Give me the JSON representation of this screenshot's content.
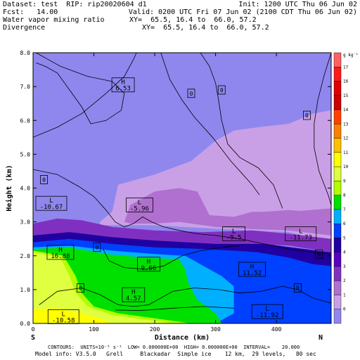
{
  "header": {
    "dataset": "Dataset: test  RIP: rip20020604 d1",
    "init": "Init: 1200 UTC Thu 06 Jun 02",
    "fcst": "Fcst:   14.00",
    "valid": "Valid: 0200 UTC Fri 07 Jun 02 (2100 CDT Thu 06 Jun 02)",
    "field1": "Water vapor mixing ratio",
    "field1_xy": "XY=  65.5, 16.4 to  66.0, 57.2",
    "field2": "Divergence",
    "field2_xy": "XY=  65.5, 16.4 to  66.0, 57.2"
  },
  "footer": {
    "contours": "CONTOURS:  UNITS=10⁻⁵ s⁻¹  LOW= 0.000000E+00  HIGH= 0.000000E+00  INTERVAL=    20.000",
    "model_info": "Model info: V3.5.0   Grell     Blackadar  Simple ice    12 km,  29 levels,   80 sec"
  },
  "chart_data": {
    "type": "heatmap",
    "title": "Water vapor mixing ratio",
    "xlabel": "Distance (km)",
    "ylabel": "Height (km)",
    "xlim": [
      0,
      490
    ],
    "ylim": [
      0,
      8
    ],
    "x_ticks": [
      0,
      100,
      200,
      300,
      400
    ],
    "x_tick_labels": [
      "0",
      "100",
      "200",
      "300",
      "400"
    ],
    "y_ticks": [
      0,
      1,
      2,
      3,
      4,
      5,
      6,
      7,
      8
    ],
    "y_tick_labels": [
      "0.0",
      "1.0",
      "2.0",
      "3.0",
      "4.0",
      "5.0",
      "6.0",
      "7.0",
      "8.0"
    ],
    "x_end_labels": [
      "S",
      "N"
    ],
    "colorbar": {
      "unit_label": "g kg⁻¹",
      "levels": [
        18,
        17,
        16,
        15,
        14,
        13,
        12,
        11,
        10,
        9,
        8,
        7,
        6,
        5,
        4,
        3,
        2,
        1,
        0
      ],
      "colors": [
        "#ff6060",
        "#ff1a1a",
        "#e00000",
        "#cc0000",
        "#ff4000",
        "#ff8000",
        "#ffc000",
        "#ffff00",
        "#e0ff40",
        "#b0ff00",
        "#00e000",
        "#00b0ff",
        "#0040ff",
        "#2000a0",
        "#5a00c0",
        "#8030c0",
        "#b070d0",
        "#c9a0e6",
        "#8f87ee"
      ]
    },
    "moisture_regions": [
      {
        "level": 0,
        "color": "#8f87ee"
      },
      {
        "level": 1,
        "color": "#c9a0e6"
      },
      {
        "level": 2,
        "color": "#b070d0"
      },
      {
        "level": 3,
        "color": "#8030c0"
      },
      {
        "level": 5,
        "color": "#2000a0"
      },
      {
        "level": 6,
        "color": "#0040ff"
      },
      {
        "level": 7,
        "color": "#00b0ff"
      },
      {
        "level": 8,
        "color": "#00e000"
      },
      {
        "level": 9,
        "color": "#b0ff00"
      },
      {
        "level": 10,
        "color": "#e0ff40"
      },
      {
        "level": 11,
        "color": "#ffff00"
      }
    ],
    "extrema_labels": [
      {
        "kind": "H",
        "value": "6.53",
        "x": 148,
        "y": 7.05
      },
      {
        "kind": "L",
        "value": "-10.67",
        "x": 30,
        "y": 3.55
      },
      {
        "kind": "L",
        "value": "-5.96",
        "x": 175,
        "y": 3.5
      },
      {
        "kind": "L",
        "value": "-9.5",
        "x": 330,
        "y": 2.65
      },
      {
        "kind": "L",
        "value": "-11.73",
        "x": 440,
        "y": 2.65
      },
      {
        "kind": "H",
        "value": "16.88",
        "x": 45,
        "y": 2.1
      },
      {
        "kind": "H",
        "value": "9.66",
        "x": 190,
        "y": 1.75
      },
      {
        "kind": "H",
        "value": "11.52",
        "x": 360,
        "y": 1.6
      },
      {
        "kind": "H",
        "value": "4.57",
        "x": 165,
        "y": 0.85
      },
      {
        "kind": "L",
        "value": "-10.58",
        "x": 50,
        "y": 0.2
      },
      {
        "kind": "L",
        "value": "-11.92",
        "x": 385,
        "y": 0.35
      }
    ],
    "zero_labels": [
      {
        "value": "0",
        "x": 260,
        "y": 6.8
      },
      {
        "value": "0",
        "x": 310,
        "y": 6.9
      },
      {
        "value": "0",
        "x": 450,
        "y": 6.15
      },
      {
        "value": "0",
        "x": 18,
        "y": 4.25
      },
      {
        "value": "0",
        "x": 105,
        "y": 2.25
      },
      {
        "value": "0",
        "x": 470,
        "y": 2.05
      },
      {
        "value": "0",
        "x": 78,
        "y": 1.05
      },
      {
        "value": "0",
        "x": 435,
        "y": 1.05
      }
    ],
    "divergence_contours": [
      [
        [
          5,
          8
        ],
        [
          45,
          7.6
        ],
        [
          90,
          7.3
        ],
        [
          130,
          7.15
        ],
        [
          150,
          6.8
        ],
        [
          145,
          6.3
        ],
        [
          120,
          6.0
        ],
        [
          95,
          5.9
        ],
        [
          80,
          6.4
        ],
        [
          60,
          6.9
        ],
        [
          40,
          7.4
        ],
        [
          20,
          7.6
        ],
        [
          5,
          7.7
        ]
      ],
      [
        [
          0,
          5.5
        ],
        [
          40,
          5.8
        ],
        [
          80,
          6.2
        ],
        [
          120,
          6.8
        ],
        [
          150,
          7.3
        ],
        [
          165,
          7.8
        ],
        [
          170,
          8
        ]
      ],
      [
        [
          210,
          8
        ],
        [
          225,
          7.2
        ],
        [
          245,
          6.6
        ],
        [
          265,
          6.1
        ],
        [
          295,
          5.5
        ],
        [
          325,
          4.8
        ],
        [
          345,
          4.4
        ],
        [
          360,
          4.1
        ],
        [
          372,
          3.8
        ]
      ],
      [
        [
          275,
          8
        ],
        [
          290,
          7.6
        ],
        [
          300,
          7.1
        ],
        [
          305,
          6.6
        ],
        [
          310,
          6.0
        ],
        [
          320,
          5.3
        ],
        [
          340,
          4.9
        ],
        [
          370,
          4.6
        ],
        [
          395,
          4.1
        ],
        [
          410,
          3.4
        ]
      ],
      [
        [
          0,
          4.55
        ],
        [
          40,
          4.4
        ],
        [
          75,
          4.05
        ],
        [
          100,
          3.75
        ],
        [
          120,
          3.35
        ],
        [
          135,
          3.0
        ],
        [
          150,
          2.85
        ],
        [
          165,
          2.95
        ],
        [
          180,
          3.15
        ],
        [
          195,
          3.0
        ],
        [
          215,
          2.85
        ],
        [
          240,
          2.75
        ],
        [
          270,
          2.65
        ],
        [
          300,
          2.6
        ],
        [
          340,
          2.5
        ],
        [
          380,
          2.35
        ],
        [
          420,
          2.2
        ],
        [
          460,
          2.1
        ],
        [
          490,
          2.05
        ]
      ],
      [
        [
          490,
          8
        ],
        [
          478,
          7.3
        ],
        [
          468,
          6.6
        ],
        [
          462,
          5.9
        ],
        [
          462,
          5.2
        ],
        [
          470,
          4.5
        ],
        [
          485,
          3.8
        ],
        [
          490,
          3.5
        ]
      ],
      [
        [
          115,
          2.2
        ],
        [
          125,
          1.85
        ],
        [
          150,
          1.65
        ],
        [
          185,
          1.6
        ],
        [
          215,
          1.7
        ],
        [
          245,
          2.0
        ],
        [
          275,
          2.15
        ],
        [
          310,
          2.25
        ],
        [
          340,
          2.3
        ]
      ],
      [
        [
          10,
          0.55
        ],
        [
          40,
          0.95
        ],
        [
          80,
          1.05
        ],
        [
          110,
          0.85
        ],
        [
          140,
          0.55
        ],
        [
          165,
          0.5
        ],
        [
          190,
          0.55
        ],
        [
          230,
          0.95
        ],
        [
          265,
          1.05
        ],
        [
          305,
          1.0
        ],
        [
          340,
          0.9
        ],
        [
          375,
          0.95
        ],
        [
          410,
          1.1
        ],
        [
          435,
          1.0
        ],
        [
          460,
          0.75
        ],
        [
          490,
          0.6
        ]
      ],
      [
        [
          135,
          0.4
        ],
        [
          175,
          0.38
        ],
        [
          230,
          0.45
        ],
        [
          280,
          0.5
        ],
        [
          330,
          0.45
        ]
      ]
    ]
  }
}
